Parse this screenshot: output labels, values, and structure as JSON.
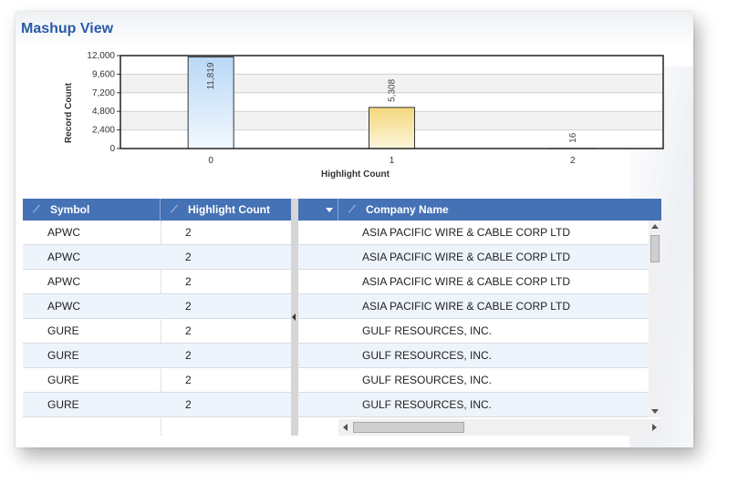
{
  "panel": {
    "title": "Mashup View"
  },
  "chart_data": {
    "type": "bar",
    "title": "",
    "xlabel": "Highlight Count",
    "ylabel": "Record Count",
    "categories": [
      "0",
      "1",
      "2"
    ],
    "values": [
      11819,
      5308,
      16
    ],
    "value_labels": [
      "11,819",
      "5,308",
      "16"
    ],
    "ylim": [
      0,
      12000
    ],
    "yticks": [
      0,
      2400,
      4800,
      7200,
      9600,
      12000
    ],
    "ytick_labels": [
      "0",
      "2,400",
      "4,800",
      "7,200",
      "9,600",
      "12,000"
    ],
    "grid": true,
    "bar_colors": [
      "#cfe4fa",
      "#f7e19d",
      "#cfe4fa"
    ]
  },
  "grid": {
    "columns": {
      "symbol": "Symbol",
      "highlight_count": "Highlight Count",
      "company_name": "Company Name"
    },
    "rows": [
      {
        "symbol": "APWC",
        "highlight_count": "2",
        "company_name": "ASIA PACIFIC WIRE & CABLE CORP LTD"
      },
      {
        "symbol": "APWC",
        "highlight_count": "2",
        "company_name": "ASIA PACIFIC WIRE & CABLE CORP LTD"
      },
      {
        "symbol": "APWC",
        "highlight_count": "2",
        "company_name": "ASIA PACIFIC WIRE & CABLE CORP LTD"
      },
      {
        "symbol": "APWC",
        "highlight_count": "2",
        "company_name": "ASIA PACIFIC WIRE & CABLE CORP LTD"
      },
      {
        "symbol": "GURE",
        "highlight_count": "2",
        "company_name": "GULF RESOURCES, INC."
      },
      {
        "symbol": "GURE",
        "highlight_count": "2",
        "company_name": "GULF RESOURCES, INC."
      },
      {
        "symbol": "GURE",
        "highlight_count": "2",
        "company_name": "GULF RESOURCES, INC."
      },
      {
        "symbol": "GURE",
        "highlight_count": "2",
        "company_name": "GULF RESOURCES, INC."
      }
    ]
  },
  "colors": {
    "header_bg": "#4571b5",
    "title": "#2a5aa8",
    "alt_row": "#eef4fc"
  }
}
